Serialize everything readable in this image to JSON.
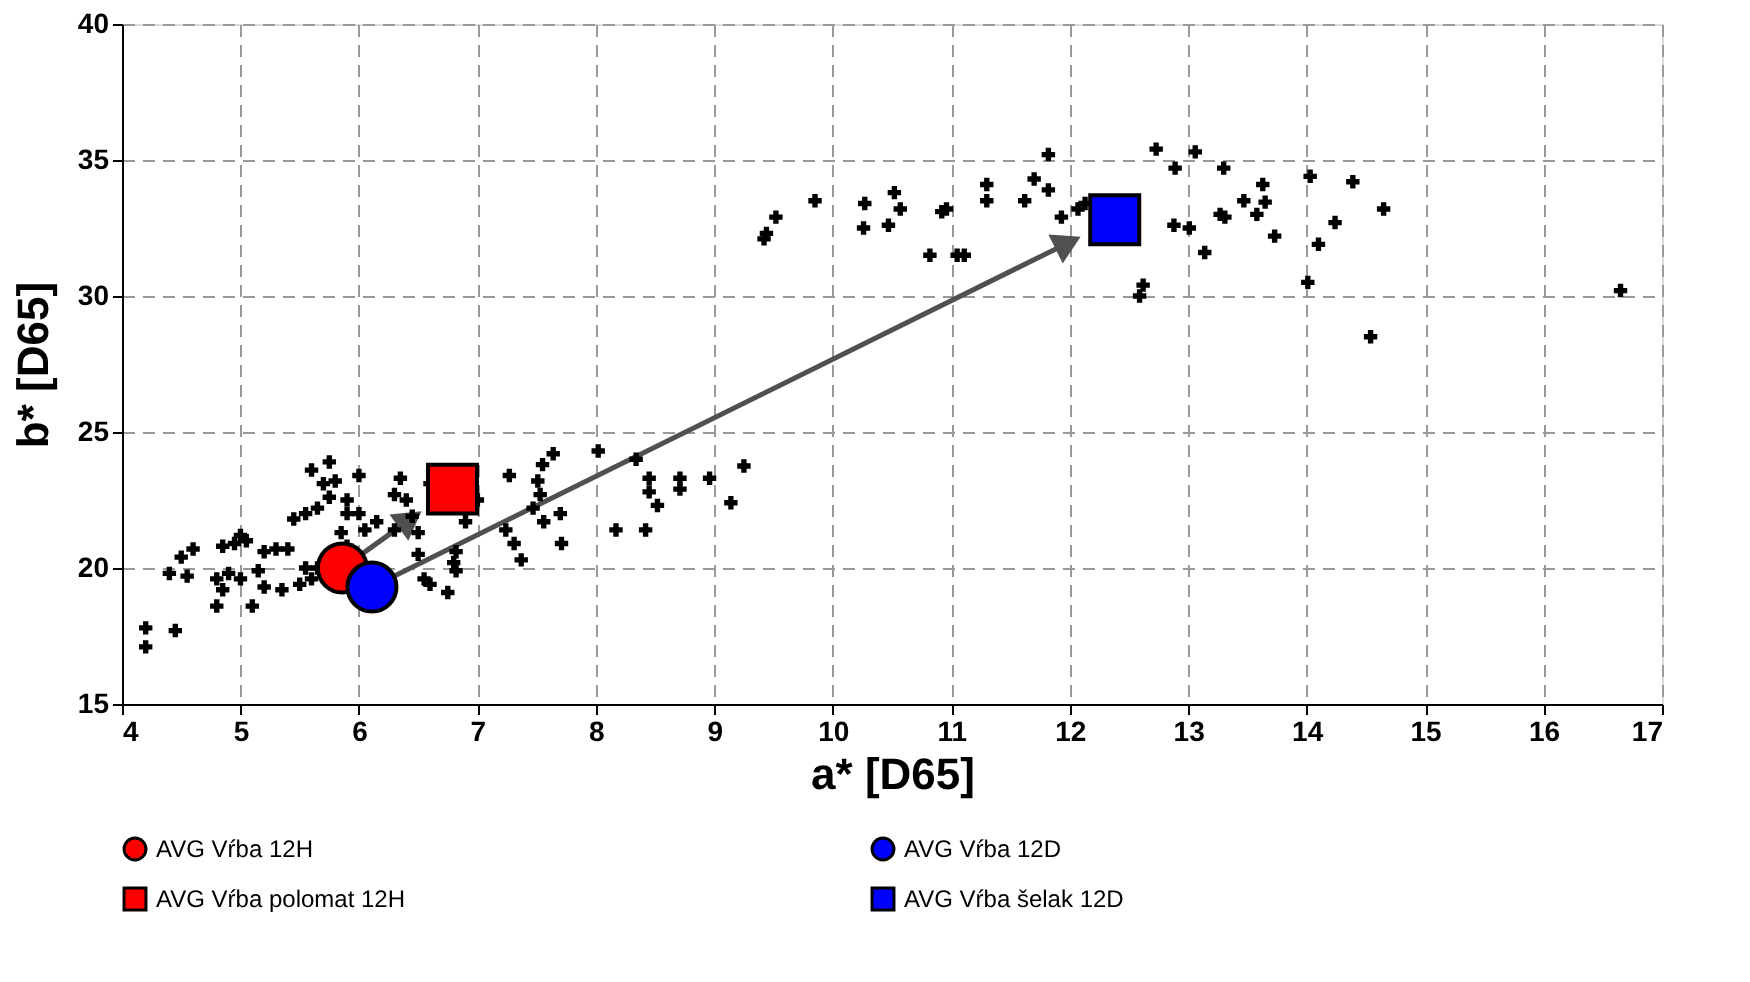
{
  "chart_data": {
    "type": "scatter",
    "xlabel": "a*  [D65]",
    "ylabel": "b*  [D65]",
    "xlim": [
      4,
      17
    ],
    "xticks": [
      4,
      5,
      6,
      7,
      8,
      9,
      10,
      11,
      12,
      13,
      14,
      15,
      16,
      17
    ],
    "ylim": [
      15,
      40
    ],
    "yticks": [
      15,
      20,
      25,
      30,
      35,
      40
    ],
    "grid": true,
    "legend": "bottom",
    "series": [
      {
        "color": "#000000",
        "marker": "cross",
        "x": [
          4.2,
          4.2,
          4.45,
          4.4,
          4.55,
          4.5,
          4.6,
          4.8,
          4.85,
          4.8,
          4.9,
          4.85,
          4.95,
          5.0,
          5.05,
          5.0,
          5.15,
          5.1,
          5.2,
          5.2,
          5.3,
          5.35,
          5.4,
          5.45,
          5.5,
          5.6,
          5.55,
          5.65,
          5.55,
          5.65,
          5.75,
          5.7,
          5.6,
          5.75,
          5.8,
          5.9,
          5.9,
          6.0,
          6.0,
          6.05,
          5.85,
          5.9,
          6.15,
          6.3,
          6.35,
          6.4,
          6.45,
          6.5,
          6.6,
          6.3,
          6.5,
          6.6,
          6.55,
          6.75,
          6.8,
          6.9,
          7.0,
          7.64,
          7.55,
          8.02,
          8.34,
          7.27,
          7.51,
          7.53,
          7.47,
          7.7,
          7.56,
          7.24,
          7.31,
          7.37,
          7.71,
          8.17,
          8.42,
          8.45,
          8.45,
          8.71,
          8.71,
          8.96,
          9.25,
          8.52,
          9.14,
          6.82,
          6.82,
          9.42,
          9.44,
          9.52,
          9.85,
          10.27,
          10.26,
          10.52,
          10.57,
          10.47,
          10.82,
          10.92,
          10.96,
          11.05,
          11.11,
          11.3,
          11.3,
          11.62,
          11.7,
          11.82,
          11.82,
          11.93,
          12.07,
          12.13,
          12.62,
          12.59,
          12.73,
          12.89,
          13.06,
          13.3,
          12.88,
          13.01,
          13.27,
          13.14,
          13.31,
          13.63,
          13.47,
          13.65,
          13.58,
          14.03,
          13.73,
          14.39,
          14.65,
          14.24,
          14.1,
          14.01,
          14.54,
          16.65
        ],
        "values": [
          17.8,
          17.1,
          17.7,
          19.8,
          19.7,
          20.4,
          20.7,
          18.6,
          19.2,
          19.6,
          19.8,
          20.8,
          20.9,
          21.2,
          21.0,
          19.6,
          19.9,
          18.6,
          19.3,
          20.6,
          20.7,
          19.2,
          20.7,
          21.8,
          19.4,
          19.6,
          20.0,
          20.0,
          22.0,
          22.2,
          22.6,
          23.1,
          23.6,
          23.9,
          23.2,
          22.5,
          22.0,
          23.4,
          22.0,
          21.4,
          21.3,
          20.8,
          21.7,
          22.7,
          23.3,
          22.5,
          21.9,
          21.3,
          23.1,
          21.4,
          20.5,
          19.4,
          19.6,
          19.1,
          20.2,
          21.7,
          22.5,
          24.2,
          23.8,
          24.3,
          24.0,
          23.4,
          23.2,
          22.7,
          22.2,
          22.0,
          21.7,
          21.4,
          20.9,
          20.3,
          20.9,
          21.4,
          21.4,
          23.3,
          22.8,
          23.3,
          22.9,
          23.3,
          23.75,
          22.3,
          22.4,
          20.6,
          19.9,
          32.1,
          32.3,
          32.9,
          33.5,
          33.4,
          32.5,
          33.8,
          33.2,
          32.6,
          31.5,
          33.1,
          33.2,
          31.5,
          31.5,
          34.1,
          33.5,
          33.5,
          34.3,
          35.2,
          33.9,
          32.9,
          33.2,
          33.4,
          30.4,
          30.0,
          35.4,
          34.7,
          35.3,
          34.7,
          32.6,
          32.5,
          33.0,
          31.6,
          32.9,
          34.1,
          33.5,
          33.45,
          33.0,
          34.4,
          32.2,
          34.2,
          33.2,
          32.7,
          31.9,
          30.5,
          28.5,
          30.2
        ]
      },
      {
        "name": "AVG Vŕba 12H",
        "color": "#ff0000",
        "marker": "circle",
        "x": [
          5.86
        ],
        "values": [
          20.0
        ]
      },
      {
        "name": "AVG Vŕba 12D",
        "color": "#0000ff",
        "marker": "circle",
        "x": [
          6.11
        ],
        "values": [
          19.3
        ]
      },
      {
        "name": "AVG Vŕba polomat 12H",
        "color": "#ff0000",
        "marker": "square",
        "x": [
          6.79
        ],
        "values": [
          22.9
        ]
      },
      {
        "name": "AVG Vŕba šelak 12D",
        "color": "#0000ff",
        "marker": "square",
        "x": [
          12.38
        ],
        "values": [
          32.8
        ]
      }
    ]
  }
}
